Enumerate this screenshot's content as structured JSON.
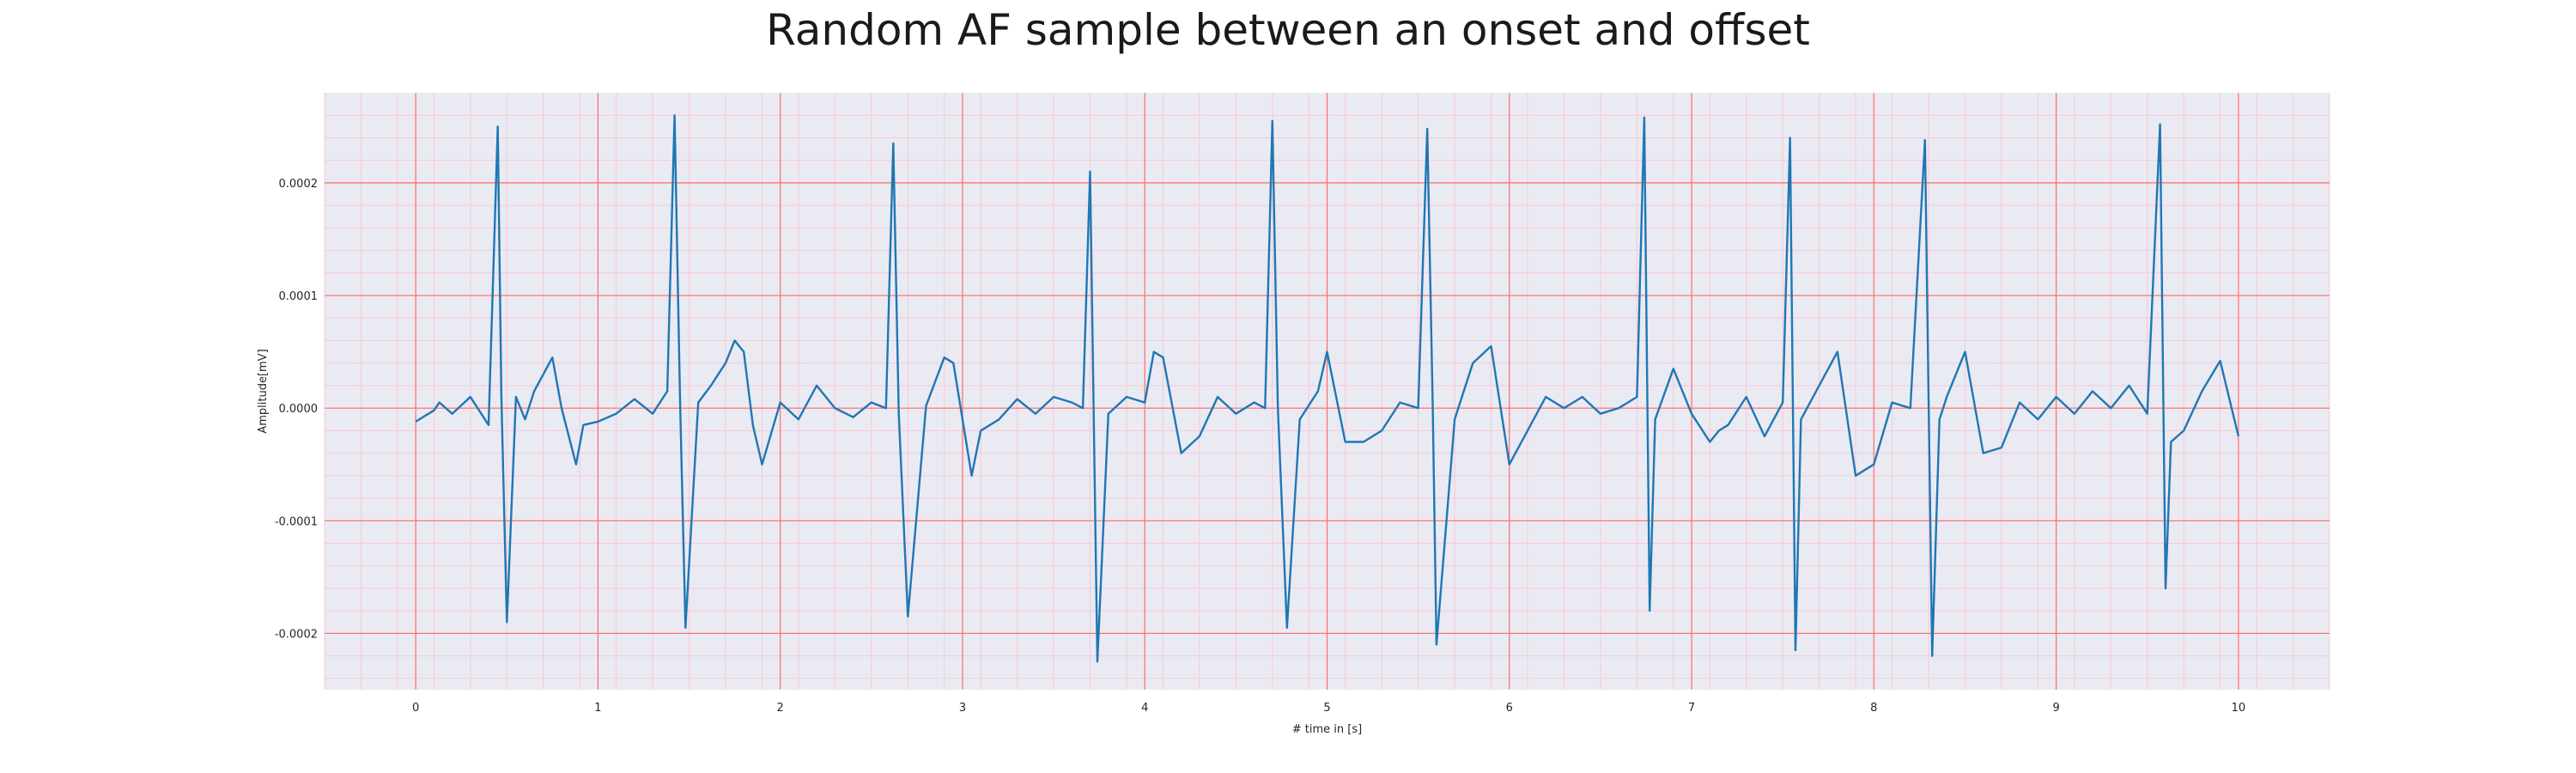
{
  "chart_data": {
    "type": "line",
    "title": "Random AF sample between an onset and offset",
    "xlabel": "# time in [s]",
    "ylabel": "Amplitude[mV]",
    "xlim": [
      -0.5,
      10.5
    ],
    "ylim": [
      -0.00025,
      0.00028
    ],
    "x_ticks": [
      "0",
      "1",
      "2",
      "3",
      "4",
      "5",
      "6",
      "7",
      "8",
      "9",
      "10"
    ],
    "y_ticks": [
      "0.0002",
      "0.0001",
      "0.0000",
      "-0.0001",
      "-0.0002"
    ],
    "y_tick_values": [
      0.0002,
      0.0001,
      0.0,
      -0.0001,
      -0.0002
    ],
    "grid": true,
    "grid_major_color": "#ff6b6b",
    "grid_minor_color": "#f7c8d6",
    "background_color": "#eaeaf2",
    "series": [
      {
        "color": "#1f77b4",
        "x": [
          0,
          0.1,
          0.13,
          0.2,
          0.3,
          0.4,
          0.45,
          0.47,
          0.5,
          0.55,
          0.6,
          0.65,
          0.7,
          0.75,
          0.8,
          0.88,
          0.92,
          1.0,
          1.1,
          1.2,
          1.3,
          1.38,
          1.42,
          1.45,
          1.48,
          1.55,
          1.62,
          1.7,
          1.75,
          1.8,
          1.85,
          1.9,
          2.0,
          2.1,
          2.2,
          2.3,
          2.4,
          2.5,
          2.58,
          2.62,
          2.65,
          2.7,
          2.8,
          2.9,
          2.95,
          3.05,
          3.1,
          3.2,
          3.3,
          3.4,
          3.5,
          3.6,
          3.66,
          3.7,
          3.74,
          3.8,
          3.9,
          4.0,
          4.05,
          4.1,
          4.2,
          4.3,
          4.4,
          4.5,
          4.6,
          4.66,
          4.7,
          4.73,
          4.78,
          4.85,
          4.95,
          5.0,
          5.1,
          5.2,
          5.3,
          5.4,
          5.5,
          5.55,
          5.58,
          5.6,
          5.7,
          5.8,
          5.9,
          6.0,
          6.1,
          6.2,
          6.3,
          6.4,
          6.5,
          6.6,
          6.7,
          6.74,
          6.77,
          6.8,
          6.9,
          7.0,
          7.1,
          7.15,
          7.2,
          7.3,
          7.4,
          7.5,
          7.54,
          7.57,
          7.6,
          7.7,
          7.8,
          7.9,
          8.0,
          8.1,
          8.2,
          8.28,
          8.32,
          8.36,
          8.4,
          8.5,
          8.6,
          8.7,
          8.8,
          8.9,
          9.0,
          9.1,
          9.2,
          9.3,
          9.4,
          9.5,
          9.57,
          9.6,
          9.63,
          9.7,
          9.8,
          9.9,
          10.0
        ],
        "y": [
          -1.2e-05,
          -2e-06,
          5e-06,
          -5e-06,
          1e-05,
          -1.5e-05,
          0.00025,
          1e-05,
          -0.00019,
          1e-05,
          -1e-05,
          1.5e-05,
          3e-05,
          4.5e-05,
          0.0,
          -5e-05,
          -1.5e-05,
          -1.2e-05,
          -5e-06,
          8e-06,
          -5e-06,
          1.5e-05,
          0.00026,
          1e-05,
          -0.000195,
          5e-06,
          2e-05,
          4e-05,
          6e-05,
          5e-05,
          -1.5e-05,
          -5e-05,
          5e-06,
          -1e-05,
          2e-05,
          0.0,
          -8e-06,
          5e-06,
          0.0,
          0.000235,
          -5e-06,
          -0.000185,
          2e-06,
          4.5e-05,
          4e-05,
          -6e-05,
          -2e-05,
          -1e-05,
          8e-06,
          -5e-06,
          1e-05,
          5e-06,
          0.0,
          0.00021,
          -0.000225,
          -5e-06,
          1e-05,
          5e-06,
          5e-05,
          4.5e-05,
          -4e-05,
          -2.5e-05,
          1e-05,
          -5e-06,
          5e-06,
          0.0,
          0.000255,
          0.0,
          -0.000195,
          -1e-05,
          1.5e-05,
          5e-05,
          -3e-05,
          -3e-05,
          -2e-05,
          5e-06,
          0.0,
          0.000248,
          0.0,
          -0.00021,
          -1e-05,
          4e-05,
          5.5e-05,
          -5e-05,
          -2e-05,
          1e-05,
          0.0,
          1e-05,
          -5e-06,
          0.0,
          1e-05,
          0.000258,
          -0.00018,
          -1e-05,
          3.5e-05,
          -5e-06,
          -3e-05,
          -2e-05,
          -1.5e-05,
          1e-05,
          -2.5e-05,
          5e-06,
          0.00024,
          -0.000215,
          -1e-05,
          2e-05,
          5e-05,
          -6e-05,
          -5e-05,
          5e-06,
          0.0,
          0.000238,
          -0.00022,
          -1e-05,
          1e-05,
          5e-05,
          -4e-05,
          -3.5e-05,
          5e-06,
          -1e-05,
          1e-05,
          -5e-06,
          1.5e-05,
          0.0,
          2e-05,
          -5e-06,
          0.000252,
          -0.00016,
          -3e-05,
          -2e-05,
          1.5e-05,
          4.2e-05,
          -2.5e-05
        ]
      }
    ]
  }
}
